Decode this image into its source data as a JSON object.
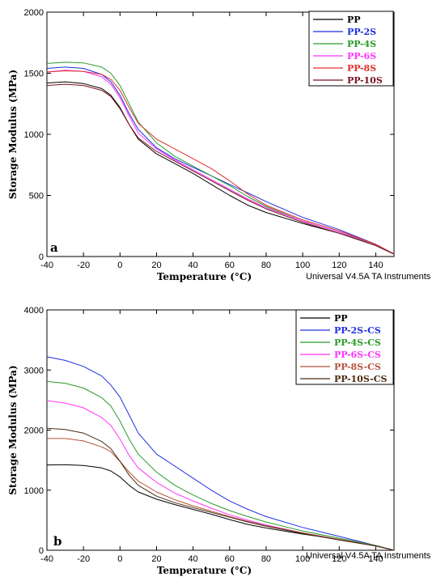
{
  "chart_data": [
    {
      "type": "line",
      "panel_label": "a",
      "xlabel": "Temperature (°C)",
      "ylabel": "Storage Modulus (MPa)",
      "xlim": [
        -40,
        150
      ],
      "ylim": [
        0,
        2000
      ],
      "xticks": [
        -40,
        -20,
        0,
        20,
        40,
        60,
        80,
        100,
        120,
        140
      ],
      "yticks": [
        0,
        500,
        1000,
        1500,
        2000
      ],
      "legend_position": "top-right",
      "footer": "Universal V4.5A TA Instruments",
      "series": [
        {
          "name": "PP",
          "color": "#000000",
          "x": [
            -40,
            -30,
            -20,
            -10,
            -5,
            0,
            5,
            10,
            20,
            30,
            40,
            50,
            60,
            70,
            80,
            100,
            120,
            140,
            150
          ],
          "y": [
            1420,
            1430,
            1415,
            1375,
            1320,
            1220,
            1080,
            960,
            840,
            760,
            680,
            590,
            500,
            420,
            360,
            270,
            190,
            90,
            20
          ]
        },
        {
          "name": "PP-2S",
          "color": "#1f2fe0",
          "x": [
            -40,
            -30,
            -20,
            -10,
            -5,
            0,
            5,
            10,
            20,
            30,
            40,
            50,
            60,
            70,
            80,
            100,
            120,
            140,
            150
          ],
          "y": [
            1540,
            1550,
            1540,
            1490,
            1430,
            1320,
            1170,
            1040,
            890,
            800,
            730,
            660,
            590,
            520,
            450,
            320,
            220,
            100,
            20
          ]
        },
        {
          "name": "PP-4S",
          "color": "#2a9a2a",
          "x": [
            -40,
            -30,
            -20,
            -10,
            -5,
            0,
            5,
            10,
            20,
            30,
            40,
            50,
            60,
            70,
            80,
            100,
            120,
            140,
            150
          ],
          "y": [
            1580,
            1590,
            1585,
            1550,
            1500,
            1400,
            1250,
            1100,
            930,
            820,
            740,
            660,
            580,
            490,
            410,
            290,
            200,
            90,
            20
          ]
        },
        {
          "name": "PP-6S",
          "color": "#ff33ff",
          "x": [
            -40,
            -30,
            -20,
            -10,
            -5,
            0,
            5,
            10,
            20,
            30,
            40,
            50,
            60,
            70,
            80,
            100,
            120,
            140,
            150
          ],
          "y": [
            1510,
            1525,
            1515,
            1470,
            1410,
            1300,
            1150,
            1010,
            880,
            790,
            710,
            630,
            550,
            470,
            400,
            290,
            200,
            100,
            20
          ]
        },
        {
          "name": "PP-8S",
          "color": "#e0302a",
          "x": [
            -40,
            -30,
            -20,
            -10,
            -5,
            0,
            5,
            10,
            20,
            30,
            40,
            50,
            60,
            70,
            80,
            100,
            120,
            140,
            150
          ],
          "y": [
            1510,
            1520,
            1515,
            1490,
            1450,
            1360,
            1220,
            1090,
            960,
            880,
            800,
            720,
            620,
            510,
            420,
            300,
            210,
            100,
            20
          ]
        },
        {
          "name": "PP-10S",
          "color": "#7a1020",
          "x": [
            -40,
            -30,
            -20,
            -10,
            -5,
            0,
            5,
            10,
            20,
            30,
            40,
            50,
            60,
            70,
            80,
            100,
            120,
            140,
            150
          ],
          "y": [
            1400,
            1410,
            1400,
            1360,
            1310,
            1210,
            1080,
            970,
            860,
            780,
            700,
            620,
            540,
            460,
            390,
            280,
            190,
            90,
            20
          ]
        }
      ]
    },
    {
      "type": "line",
      "panel_label": "b",
      "xlabel": "Temperature (°C)",
      "ylabel": "Storage Modulus (MPa)",
      "xlim": [
        -40,
        150
      ],
      "ylim": [
        0,
        4000
      ],
      "xticks": [
        -40,
        -20,
        0,
        20,
        40,
        60,
        80,
        100,
        120,
        140
      ],
      "yticks": [
        0,
        1000,
        2000,
        3000,
        4000
      ],
      "legend_position": "top-right",
      "footer": "Universal V4.5A TA Instruments",
      "series": [
        {
          "name": "PP",
          "color": "#000000",
          "x": [
            -40,
            -30,
            -20,
            -10,
            -5,
            0,
            5,
            10,
            20,
            30,
            40,
            50,
            60,
            70,
            80,
            100,
            120,
            140,
            150
          ],
          "y": [
            1420,
            1425,
            1410,
            1370,
            1320,
            1220,
            1080,
            970,
            850,
            760,
            680,
            600,
            510,
            430,
            370,
            270,
            180,
            80,
            0
          ]
        },
        {
          "name": "PP-2S-CS",
          "color": "#1f2fe0",
          "x": [
            -40,
            -30,
            -20,
            -10,
            -5,
            0,
            5,
            10,
            20,
            30,
            40,
            50,
            60,
            70,
            80,
            100,
            120,
            140,
            150
          ],
          "y": [
            3220,
            3160,
            3060,
            2900,
            2750,
            2550,
            2250,
            1950,
            1600,
            1400,
            1200,
            1000,
            820,
            680,
            560,
            380,
            230,
            80,
            0
          ]
        },
        {
          "name": "PP-4S-CS",
          "color": "#2a9a2a",
          "x": [
            -40,
            -30,
            -20,
            -10,
            -5,
            0,
            5,
            10,
            20,
            30,
            40,
            50,
            60,
            70,
            80,
            100,
            120,
            140,
            150
          ],
          "y": [
            2810,
            2780,
            2700,
            2540,
            2400,
            2150,
            1850,
            1600,
            1300,
            1080,
            920,
            780,
            660,
            560,
            470,
            320,
            200,
            80,
            0
          ]
        },
        {
          "name": "PP-6S-CS",
          "color": "#ff33ff",
          "x": [
            -40,
            -30,
            -20,
            -10,
            -5,
            0,
            5,
            10,
            20,
            30,
            40,
            50,
            60,
            70,
            80,
            100,
            120,
            140,
            150
          ],
          "y": [
            2490,
            2450,
            2370,
            2210,
            2080,
            1850,
            1580,
            1370,
            1130,
            950,
            820,
            700,
            590,
            500,
            420,
            290,
            180,
            70,
            0
          ]
        },
        {
          "name": "PP-8S-CS",
          "color": "#b5523a",
          "x": [
            -40,
            -30,
            -20,
            -10,
            -5,
            0,
            5,
            10,
            20,
            30,
            40,
            50,
            60,
            70,
            80,
            100,
            120,
            140,
            150
          ],
          "y": [
            1860,
            1860,
            1820,
            1720,
            1640,
            1480,
            1300,
            1150,
            970,
            840,
            740,
            650,
            560,
            480,
            410,
            290,
            180,
            70,
            0
          ]
        },
        {
          "name": "PP-10S-CS",
          "color": "#4a2a10",
          "x": [
            -40,
            -30,
            -20,
            -10,
            -5,
            0,
            5,
            10,
            20,
            30,
            40,
            50,
            60,
            70,
            80,
            100,
            120,
            140,
            150
          ],
          "y": [
            2030,
            2010,
            1950,
            1810,
            1690,
            1480,
            1250,
            1080,
            900,
            790,
            710,
            630,
            550,
            470,
            400,
            280,
            170,
            70,
            0
          ]
        }
      ]
    }
  ]
}
